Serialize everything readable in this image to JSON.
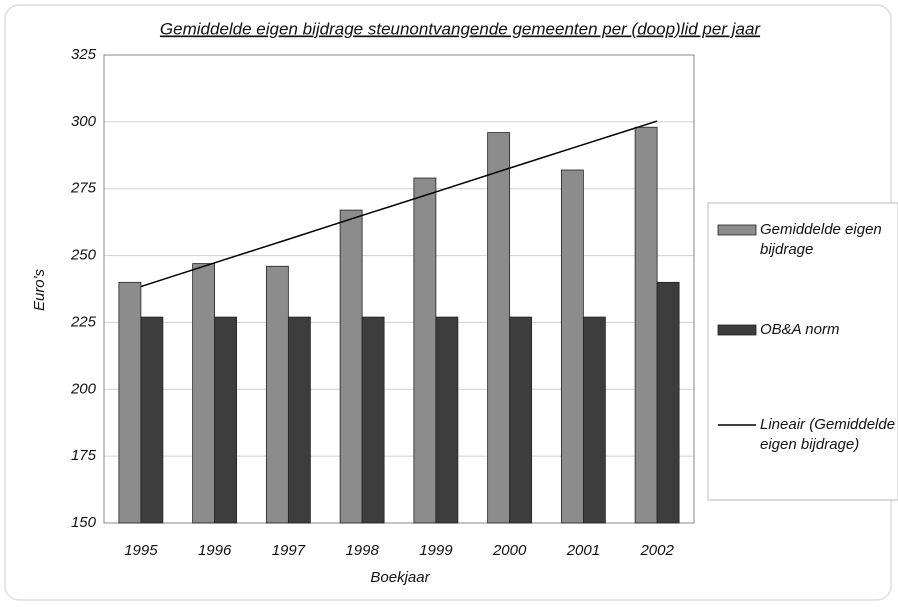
{
  "chart_data": {
    "type": "bar",
    "title": "Gemiddelde eigen bijdrage steunontvangende gemeenten per (doop)lid per jaar",
    "x_label": "Boekjaar",
    "y_label": "Euro's",
    "categories": [
      "1995",
      "1996",
      "1997",
      "1998",
      "1999",
      "2000",
      "2001",
      "2002"
    ],
    "series": [
      {
        "name": "Gemiddelde eigen bijdrage",
        "color": "#8c8c8c",
        "type": "bar",
        "values": [
          240,
          247,
          246,
          267,
          279,
          296,
          282,
          298
        ]
      },
      {
        "name": "OB&A norm",
        "color": "#3d3d3d",
        "type": "bar",
        "values": [
          227,
          227,
          227,
          227,
          227,
          227,
          227,
          240
        ]
      },
      {
        "name": "Lineair (Gemiddelde eigen bijdrage)",
        "color": "#000000",
        "type": "line",
        "values": [
          238.4,
          247.3,
          256.1,
          265.0,
          273.8,
          282.7,
          291.5,
          300.3
        ]
      }
    ],
    "ylim": [
      150,
      325
    ],
    "yticks": [
      150,
      175,
      200,
      225,
      250,
      275,
      300,
      325
    ],
    "grid": true,
    "legend": "right"
  }
}
